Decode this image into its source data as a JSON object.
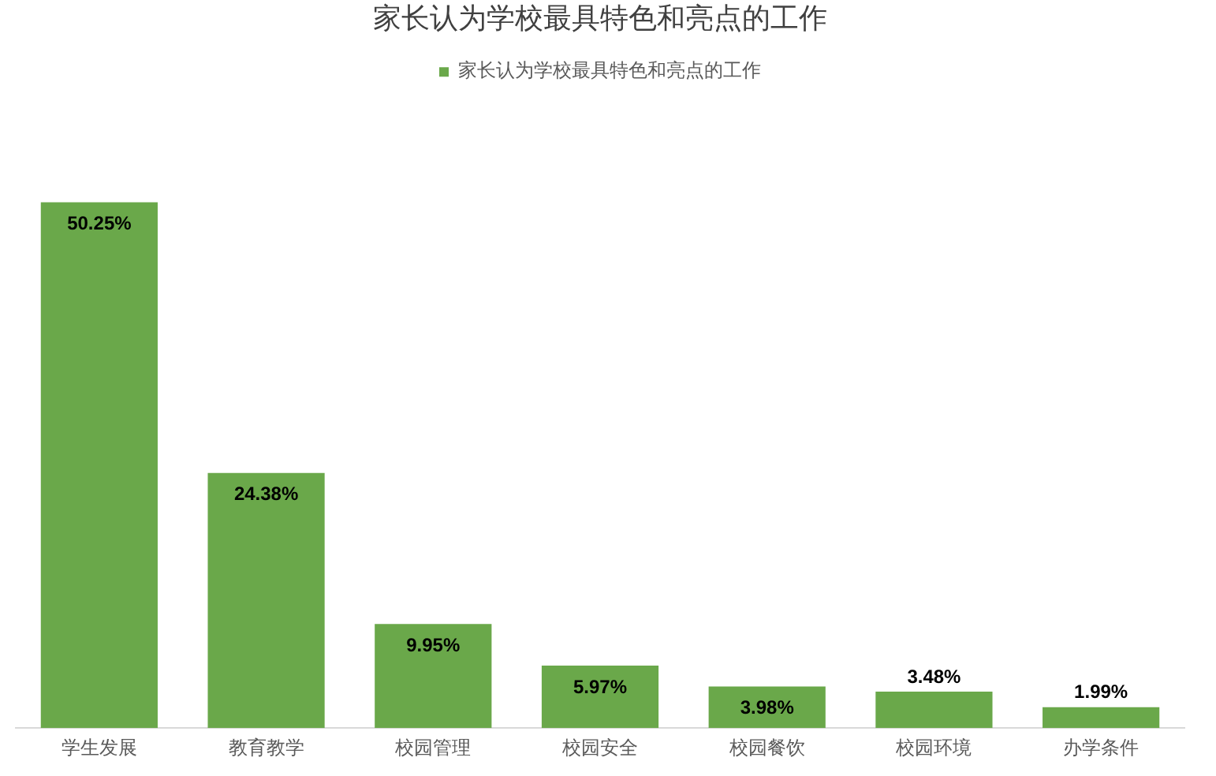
{
  "chart_data": {
    "type": "bar",
    "title": "家长认为学校最具特色和亮点的工作",
    "categories": [
      "学生发展",
      "教育教学",
      "校园管理",
      "校园安全",
      "校园餐饮",
      "校园环境",
      "办学条件"
    ],
    "series": [
      {
        "name": "家长认为学校最具特色和亮点的工作",
        "color": "#6aa84a",
        "values": [
          50.25,
          24.38,
          9.95,
          5.97,
          3.98,
          3.48,
          1.99
        ],
        "value_labels": [
          "50.25%",
          "24.38%",
          "9.95%",
          "5.97%",
          "3.98%",
          "3.48%",
          "1.99%"
        ]
      }
    ],
    "legend": "top"
  }
}
